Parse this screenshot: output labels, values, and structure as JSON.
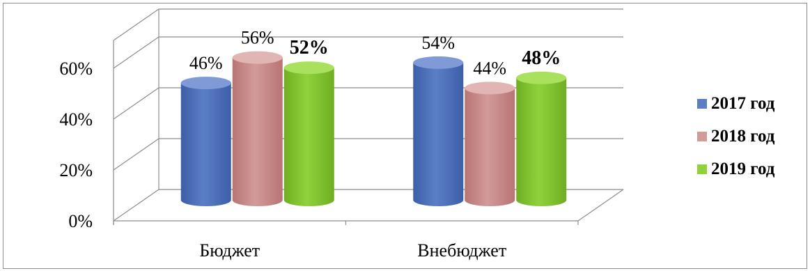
{
  "chart_data": {
    "type": "bar",
    "title": "",
    "xlabel": "",
    "ylabel": "",
    "categories": [
      "Бюджет",
      "Внебюджет"
    ],
    "series": [
      {
        "name": "2017 год",
        "values": [
          46,
          54
        ],
        "labels": [
          "46%",
          "54%"
        ],
        "label_bold": false,
        "color": "#5b7fc7",
        "dark": "#3d5ea8",
        "light": "#7f9ad6"
      },
      {
        "name": "2018 год",
        "values": [
          56,
          44
        ],
        "labels": [
          "56%",
          "44%"
        ],
        "label_bold": false,
        "color": "#d29b9a",
        "dark": "#b87473",
        "light": "#e1b5b4"
      },
      {
        "name": "2019 год",
        "values": [
          52,
          48
        ],
        "labels": [
          "52%",
          "48%"
        ],
        "label_bold": true,
        "color": "#8fd23c",
        "dark": "#6fae22",
        "light": "#a9e05e"
      }
    ],
    "y_ticks": [
      "0%",
      "20%",
      "40%",
      "60%"
    ],
    "ylim": [
      0,
      60
    ],
    "grid": true,
    "legend_position": "right"
  }
}
